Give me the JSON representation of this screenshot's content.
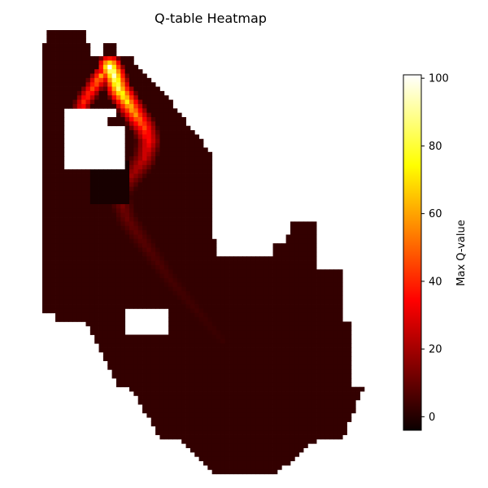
{
  "chart_data": {
    "type": "heatmap",
    "title": "Q-table Heatmap",
    "colormap": "hot",
    "colorbar": {
      "label": "Max Q-value",
      "vmin": -4,
      "vmax": 101,
      "ticks": [
        0,
        20,
        40,
        60,
        80,
        100
      ],
      "tick_labels": [
        "0",
        "20",
        "40",
        "60",
        "80",
        "100"
      ]
    },
    "axes_visible": false,
    "grid": false,
    "background_value": 2,
    "high_value_path": [
      {
        "col": 15,
        "row": 8,
        "value": 100
      },
      {
        "col": 16,
        "row": 10,
        "value": 95
      },
      {
        "col": 17,
        "row": 13,
        "value": 85
      },
      {
        "col": 19,
        "row": 16,
        "value": 72
      },
      {
        "col": 21,
        "row": 19,
        "value": 58
      },
      {
        "col": 23,
        "row": 22,
        "value": 45
      },
      {
        "col": 24,
        "row": 25,
        "value": 35
      },
      {
        "col": 23,
        "row": 29,
        "value": 25
      },
      {
        "col": 20,
        "row": 33,
        "value": 18
      },
      {
        "col": 17,
        "row": 37,
        "value": 14
      },
      {
        "col": 19,
        "row": 43,
        "value": 10
      },
      {
        "col": 24,
        "row": 50,
        "value": 7
      },
      {
        "col": 29,
        "row": 57,
        "value": 5
      },
      {
        "col": 35,
        "row": 64,
        "value": 4
      },
      {
        "col": 41,
        "row": 71,
        "value": 3
      }
    ],
    "secondary_path": [
      {
        "col": 13,
        "row": 10,
        "value": 60
      },
      {
        "col": 11,
        "row": 13,
        "value": 45
      },
      {
        "col": 9,
        "row": 16,
        "value": 40
      },
      {
        "col": 8,
        "row": 19,
        "value": 30
      }
    ]
  }
}
